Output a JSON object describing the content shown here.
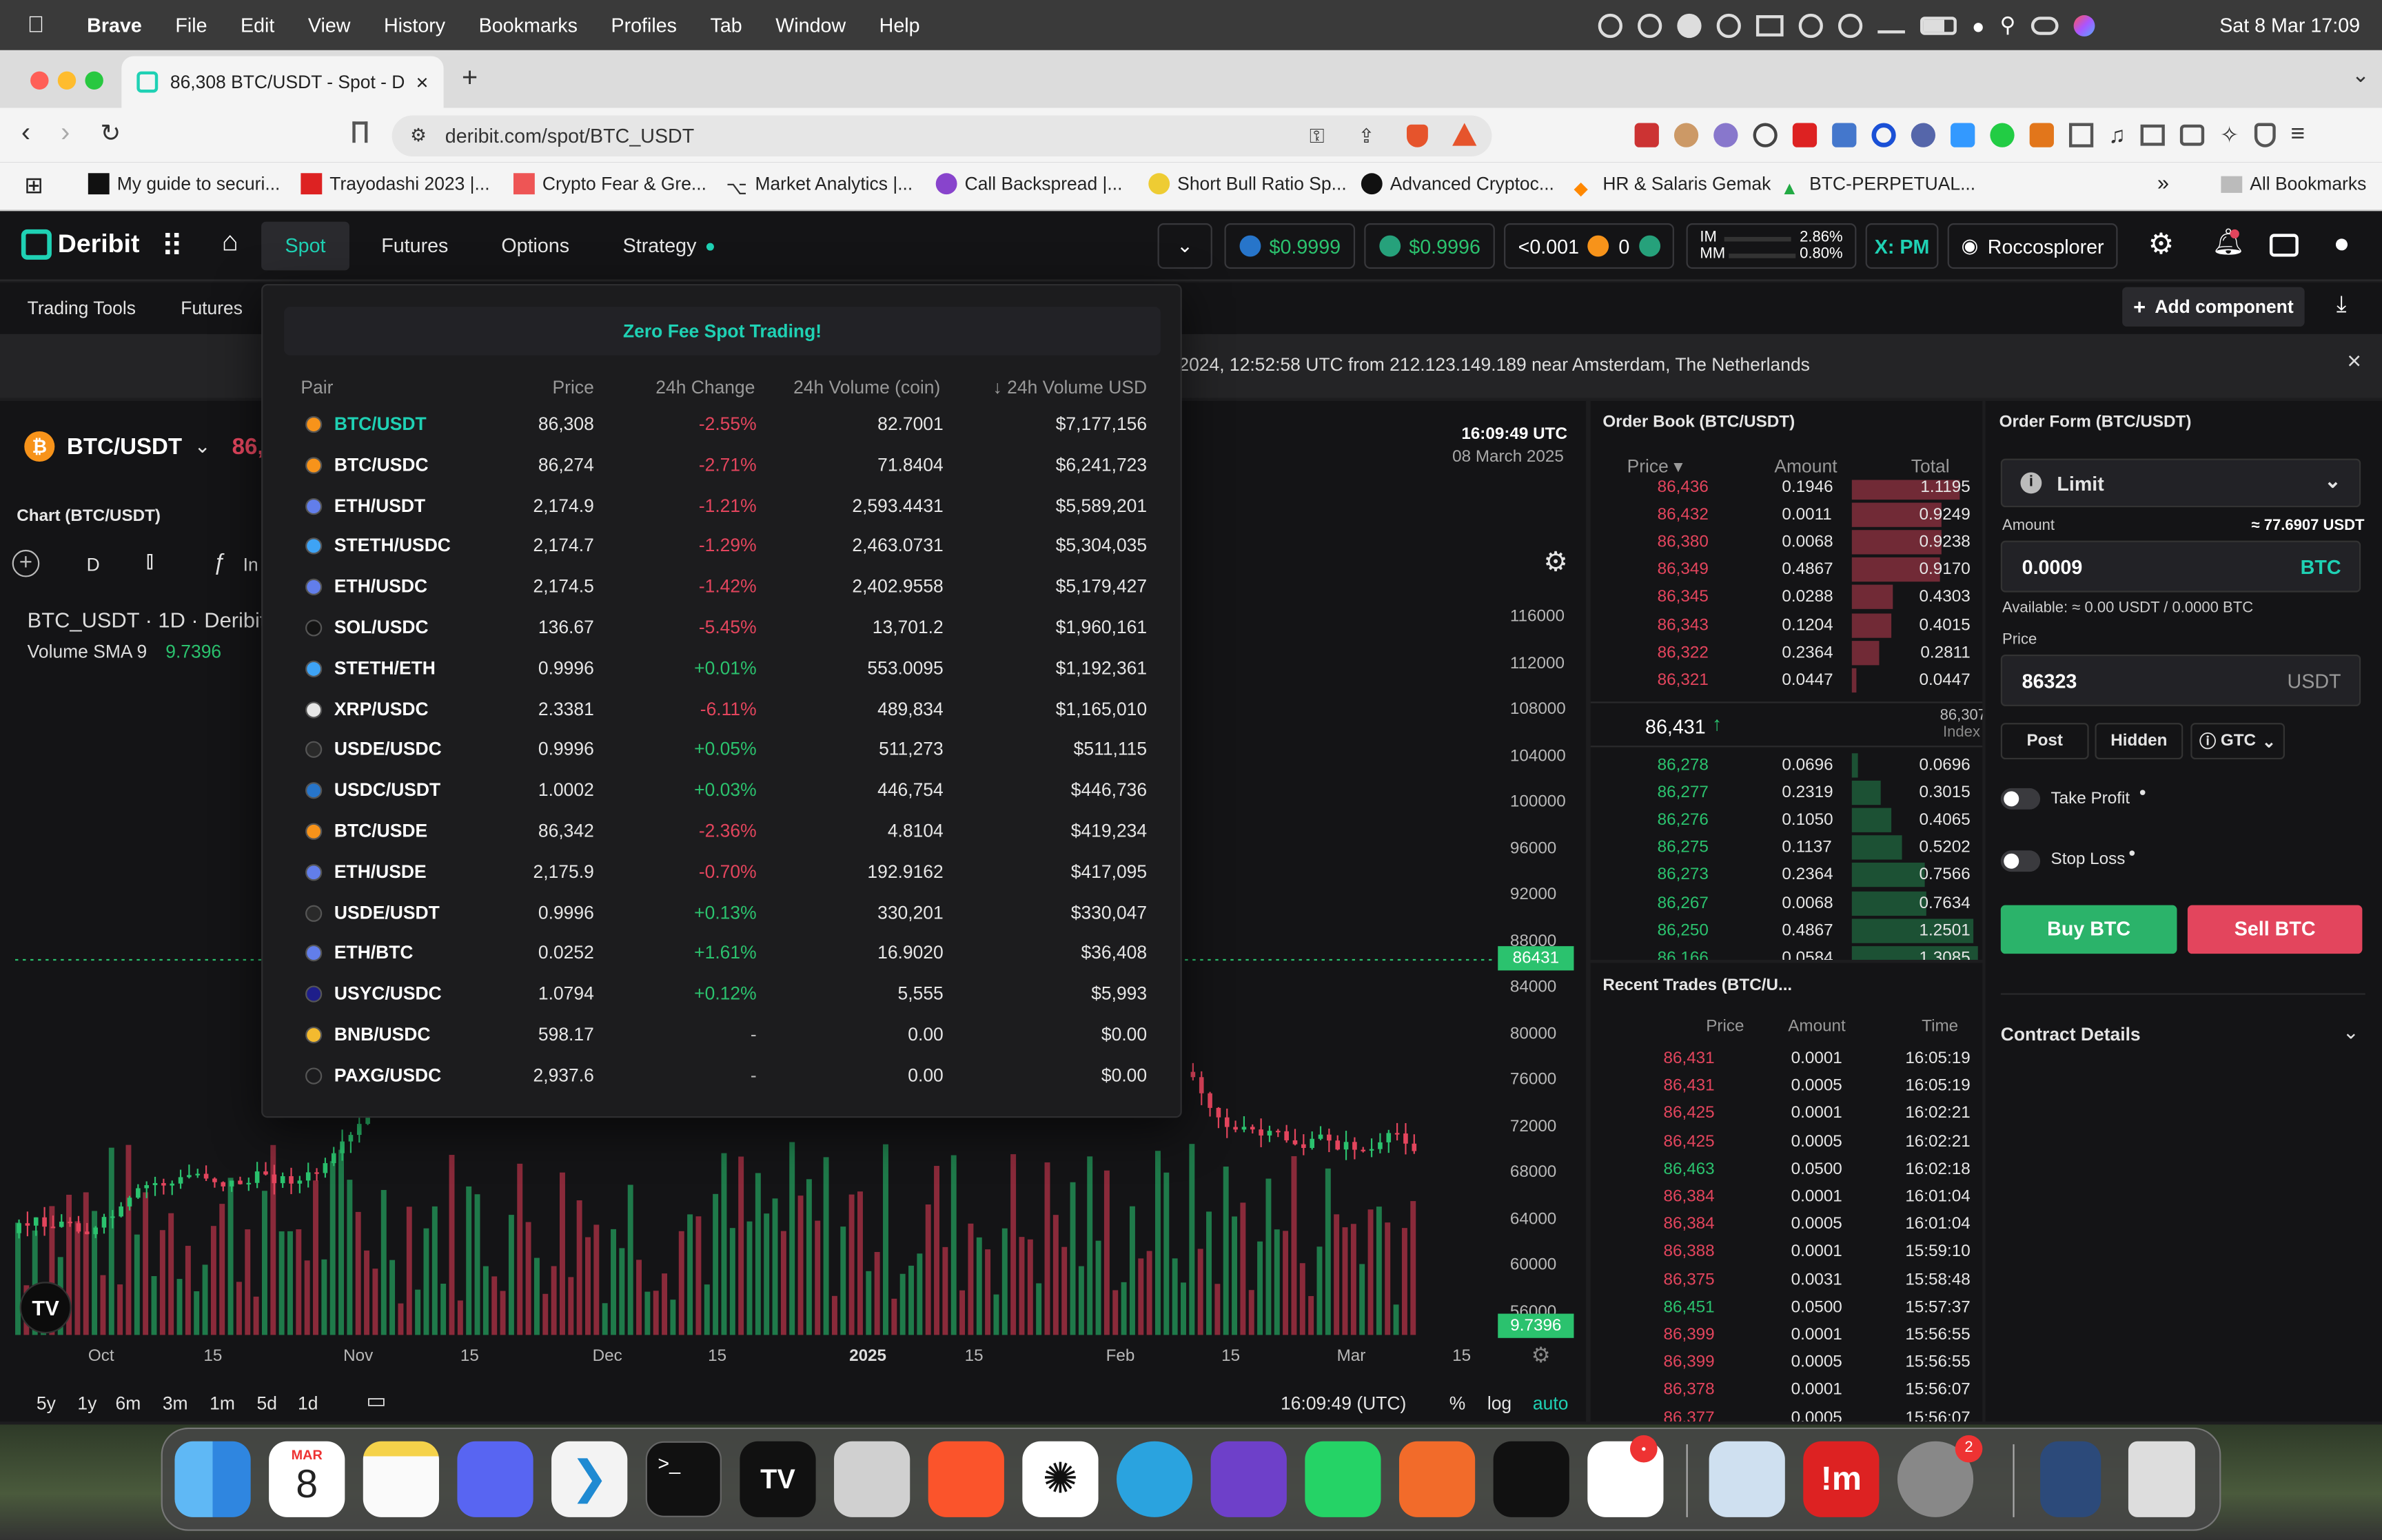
{
  "menubar": {
    "brand": "Brave",
    "items": [
      "File",
      "Edit",
      "View",
      "History",
      "Bookmarks",
      "Profiles",
      "Tab",
      "Window",
      "Help"
    ],
    "datetime": "Sat 8 Mar  17:09"
  },
  "browser": {
    "tab_title": "86,308 BTC/USDT - Spot - D",
    "url": "deribit.com/spot/BTC_USDT",
    "bookmarks": [
      "My guide to securi...",
      "Trayodashi 2023 |...",
      "Crypto Fear & Gre...",
      "Market Analytics |...",
      "Call Backspread |...",
      "Short Bull Ratio Sp...",
      "Advanced Cryptoc...",
      "HR & Salaris Gemak",
      "BTC-PERPETUAL..."
    ],
    "all_bookmarks": "All Bookmarks"
  },
  "nav": {
    "logo": "Deribit",
    "links": [
      "Spot",
      "Futures",
      "Options",
      "Strategy"
    ],
    "usdc_balance": "$0.9999",
    "usdt_balance": "$0.9996",
    "btc_balance": "<0.001",
    "zero": "0",
    "im_label": "IM",
    "im_value": "2.86%",
    "mm_label": "MM",
    "mm_value": "0.80%",
    "xpm": "X: PM",
    "user": "Roccosplorer"
  },
  "subnav": {
    "items": [
      "Trading Tools",
      "Futures"
    ],
    "add_component": "Add component"
  },
  "alert": {
    "text": "2024, 12:52:58 UTC from 212.123.149.189 near Amsterdam, The Netherlands"
  },
  "instrument": {
    "name": "BTC/USDT",
    "price": "86,"
  },
  "chart": {
    "title": "Chart (BTC/USDT)",
    "interval": "D",
    "indicator_btn": "In",
    "symbol": "BTC_USDT · 1D · Deribit",
    "volume_label": "Volume SMA 9",
    "volume_value": "9.7396",
    "time": "16:09:49 UTC",
    "date": "08 March 2025",
    "last_price_tag": "86431",
    "volume_tag": "9.7396",
    "y_ticks": [
      "116000",
      "112000",
      "108000",
      "104000",
      "100000",
      "96000",
      "92000",
      "88000",
      "84000",
      "80000",
      "76000",
      "72000",
      "68000",
      "64000",
      "60000",
      "56000"
    ],
    "x_ticks": [
      "Oct",
      "15",
      "Nov",
      "15",
      "Dec",
      "15",
      "2025",
      "15",
      "Feb",
      "15",
      "Mar",
      "15"
    ],
    "ranges": [
      "5y",
      "1y",
      "6m",
      "3m",
      "1m",
      "5d",
      "1d"
    ],
    "footer_time": "16:09:49 (UTC)",
    "pct": "%",
    "log": "log",
    "auto": "auto"
  },
  "dropdown": {
    "banner": "Zero Fee Spot Trading!",
    "headers": [
      "Pair",
      "Price",
      "24h Change",
      "24h Volume (coin)",
      "24h Volume USD"
    ],
    "rows": [
      {
        "pair": "BTC/USDT",
        "price": "86,308",
        "change": "-2.55%",
        "vol": "82.7001",
        "usd": "$7,177,156",
        "c": "#f7931a"
      },
      {
        "pair": "BTC/USDC",
        "price": "86,274",
        "change": "-2.71%",
        "vol": "71.8404",
        "usd": "$6,241,723",
        "c": "#f7931a"
      },
      {
        "pair": "ETH/USDT",
        "price": "2,174.9",
        "change": "-1.21%",
        "vol": "2,593.4431",
        "usd": "$5,589,201",
        "c": "#627eea"
      },
      {
        "pair": "STETH/USDC",
        "price": "2,174.7",
        "change": "-1.29%",
        "vol": "2,463.0731",
        "usd": "$5,304,035",
        "c": "#3ea3f5"
      },
      {
        "pair": "ETH/USDC",
        "price": "2,174.5",
        "change": "-1.42%",
        "vol": "2,402.9558",
        "usd": "$5,179,427",
        "c": "#627eea"
      },
      {
        "pair": "SOL/USDC",
        "price": "136.67",
        "change": "-5.45%",
        "vol": "13,701.2",
        "usd": "$1,960,161",
        "c": "#141414"
      },
      {
        "pair": "STETH/ETH",
        "price": "0.9996",
        "change": "+0.01%",
        "vol": "553.0095",
        "usd": "$1,192,361",
        "c": "#3ea3f5"
      },
      {
        "pair": "XRP/USDC",
        "price": "2.3381",
        "change": "-6.11%",
        "vol": "489,834",
        "usd": "$1,165,010",
        "c": "#e6e6e6"
      },
      {
        "pair": "USDE/USDC",
        "price": "0.9996",
        "change": "+0.05%",
        "vol": "511,273",
        "usd": "$511,115",
        "c": "#2a2a2a"
      },
      {
        "pair": "USDC/USDT",
        "price": "1.0002",
        "change": "+0.03%",
        "vol": "446,754",
        "usd": "$446,736",
        "c": "#2775ca"
      },
      {
        "pair": "BTC/USDE",
        "price": "86,342",
        "change": "-2.36%",
        "vol": "4.8104",
        "usd": "$419,234",
        "c": "#f7931a"
      },
      {
        "pair": "ETH/USDE",
        "price": "2,175.9",
        "change": "-0.70%",
        "vol": "192.9162",
        "usd": "$417,095",
        "c": "#627eea"
      },
      {
        "pair": "USDE/USDT",
        "price": "0.9996",
        "change": "+0.13%",
        "vol": "330,201",
        "usd": "$330,047",
        "c": "#2a2a2a"
      },
      {
        "pair": "ETH/BTC",
        "price": "0.0252",
        "change": "+1.61%",
        "vol": "16.9020",
        "usd": "$36,408",
        "c": "#627eea"
      },
      {
        "pair": "USYC/USDC",
        "price": "1.0794",
        "change": "+0.12%",
        "vol": "5,555",
        "usd": "$5,993",
        "c": "#1e1e8a"
      },
      {
        "pair": "BNB/USDC",
        "price": "598.17",
        "change": "-",
        "vol": "0.00",
        "usd": "$0.00",
        "c": "#f3ba2f"
      },
      {
        "pair": "PAXG/USDC",
        "price": "2,937.6",
        "change": "-",
        "vol": "0.00",
        "usd": "$0.00",
        "c": "#1c1c1e"
      }
    ]
  },
  "orderbook": {
    "title": "Order Book (BTC/USDT)",
    "headers": [
      "Price",
      "Amount",
      "Total"
    ],
    "asks": [
      [
        "86,436",
        "0.1946",
        "1.1195"
      ],
      [
        "86,432",
        "0.0011",
        "0.9249"
      ],
      [
        "86,380",
        "0.0068",
        "0.9238"
      ],
      [
        "86,349",
        "0.4867",
        "0.9170"
      ],
      [
        "86,345",
        "0.0288",
        "0.4303"
      ],
      [
        "86,343",
        "0.1204",
        "0.4015"
      ],
      [
        "86,322",
        "0.2364",
        "0.2811"
      ],
      [
        "86,321",
        "0.0447",
        "0.0447"
      ]
    ],
    "mid": "86,431",
    "index_price": "86,307",
    "index_label": "Index",
    "bids": [
      [
        "86,278",
        "0.0696",
        "0.0696"
      ],
      [
        "86,277",
        "0.2319",
        "0.3015"
      ],
      [
        "86,276",
        "0.1050",
        "0.4065"
      ],
      [
        "86,275",
        "0.1137",
        "0.5202"
      ],
      [
        "86,273",
        "0.2364",
        "0.7566"
      ],
      [
        "86,267",
        "0.0068",
        "0.7634"
      ],
      [
        "86,250",
        "0.4867",
        "1.2501"
      ],
      [
        "86,166",
        "0.0584",
        "1.3085"
      ]
    ]
  },
  "trades": {
    "title": "Recent Trades (BTC/U...",
    "headers": [
      "Price",
      "Amount",
      "Time"
    ],
    "rows": [
      [
        "86,431",
        "0.0001",
        "16:05:19",
        "s"
      ],
      [
        "86,431",
        "0.0005",
        "16:05:19",
        "s"
      ],
      [
        "86,425",
        "0.0001",
        "16:02:21",
        "s"
      ],
      [
        "86,425",
        "0.0005",
        "16:02:21",
        "s"
      ],
      [
        "86,463",
        "0.0500",
        "16:02:18",
        "b"
      ],
      [
        "86,384",
        "0.0001",
        "16:01:04",
        "s"
      ],
      [
        "86,384",
        "0.0005",
        "16:01:04",
        "s"
      ],
      [
        "86,388",
        "0.0001",
        "15:59:10",
        "s"
      ],
      [
        "86,375",
        "0.0031",
        "15:58:48",
        "s"
      ],
      [
        "86,451",
        "0.0500",
        "15:57:37",
        "b"
      ],
      [
        "86,399",
        "0.0001",
        "15:56:55",
        "s"
      ],
      [
        "86,399",
        "0.0005",
        "15:56:55",
        "s"
      ],
      [
        "86,378",
        "0.0001",
        "15:56:07",
        "s"
      ],
      [
        "86,377",
        "0.0005",
        "15:56:07",
        "s"
      ]
    ]
  },
  "orderform": {
    "title": "Order Form (BTC/USDT)",
    "type": "Limit",
    "amount_label": "Amount",
    "amount_approx": "≈ 77.6907 USDT",
    "amount": "0.0009",
    "amount_ccy": "BTC",
    "available": "Available:  ≈ 0.00 USDT / 0.0000 BTC",
    "price_label": "Price",
    "price": "86323",
    "price_ccy": "USDT",
    "post": "Post",
    "hidden": "Hidden",
    "tif": "GTC",
    "take_profit": "Take Profit",
    "stop_loss": "Stop Loss",
    "buy": "Buy BTC",
    "sell": "Sell BTC",
    "contract_details": "Contract Details"
  },
  "dock": {
    "calendar_month": "MAR",
    "calendar_day": "8",
    "badge_slack": "•",
    "badge_settings": "2"
  },
  "colors": {
    "green": "#2bc26e",
    "red": "#e3455d",
    "accent": "#1fd1b4"
  }
}
